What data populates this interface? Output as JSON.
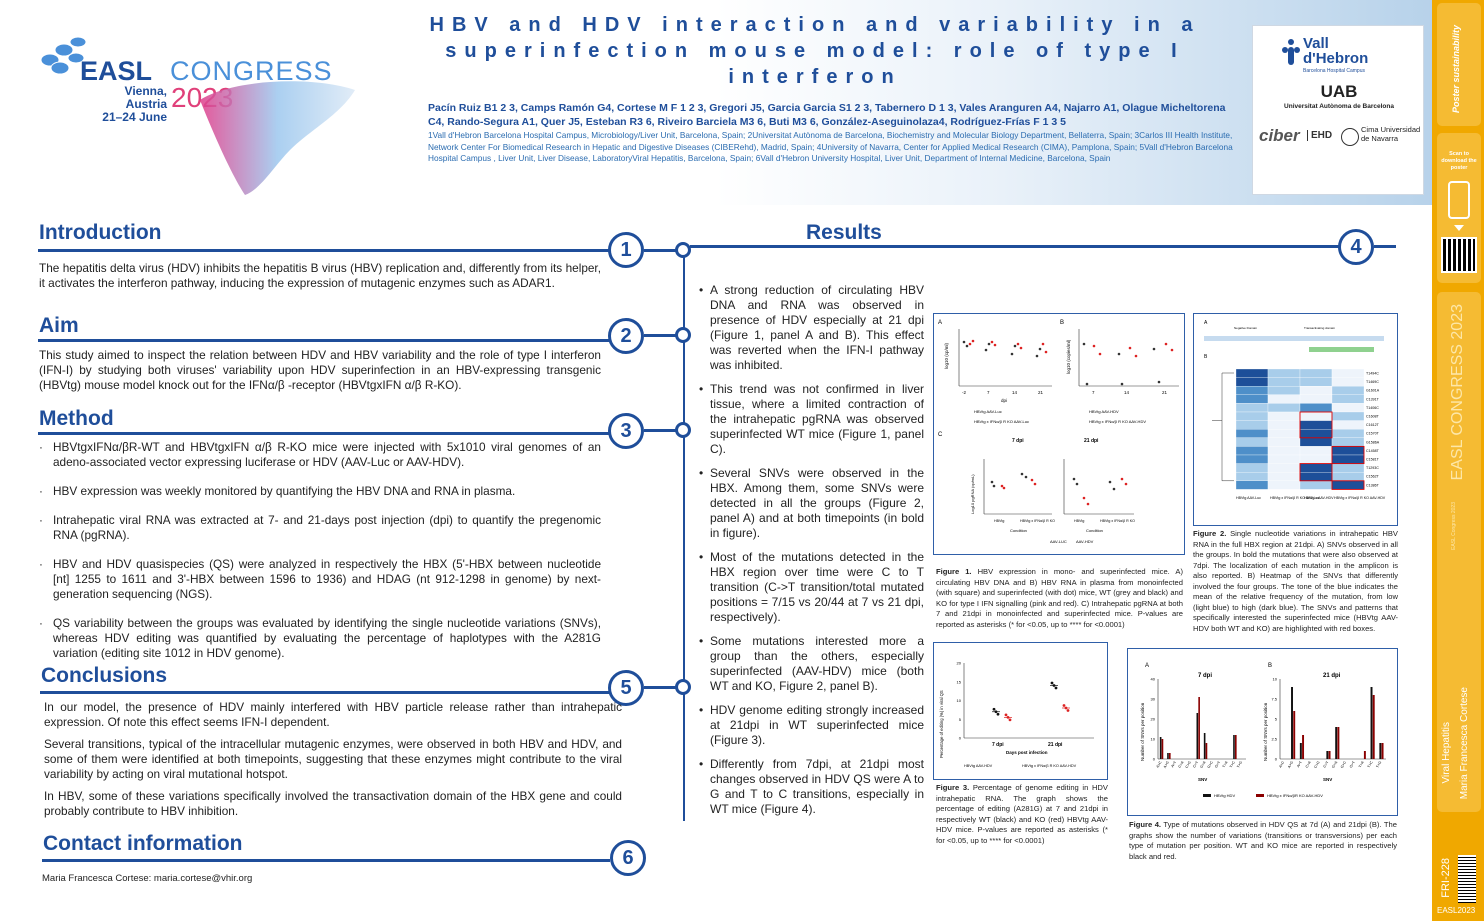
{
  "header": {
    "title": "HBV and HDV interaction and variability in a superinfection mouse model: role of type I interferon",
    "authors": "Pacín Ruiz B1 2 3, Camps Ramón G4, Cortese M F 1 2 3, Gregori J5, Garcia Garcia S1 2 3, Tabernero D 1 3, Vales Aranguren A4, Najarro A1, Olague Micheltorena C4, Rando-Segura A1, Quer J5, Esteban R3 6, Riveiro Barciela M3 6, Buti M3 6, González-Aseguinolaza4, Rodríguez-Frías F 1 3 5",
    "affiliations": "1Vall d'Hebron Barcelona Hospital Campus, Microbiology/Liver Unit, Barcelona, Spain; 2Universitat Autònoma de Barcelona, Biochemistry and Molecular Biology Department, Bellaterra, Spain; 3Carlos III Health Institute, Network Center For Biomedical Research in Hepatic and Digestive Diseases (CIBERehd), Madrid, Spain; 4University of Navarra, Center for Applied Medical Research (CIMA), Pamplona, Spain; 5Vall d'Hebron Barcelona Hospital Campus , Liver Unit, Liver Disease, LaboratoryViral Hepatitis, Barcelona, Spain; 6Vall d'Hebron University Hospital, Liver Unit, Department of Internal Medicine, Barcelona, Spain"
  },
  "logo": {
    "easl": "EASL",
    "congress": "CONGRESS",
    "city": "Vienna, Austria",
    "dates": "21–24 June",
    "year": "2023"
  },
  "partners": {
    "vh1": "Vall",
    "vh2": "d'Hebron",
    "vh3": "Barcelona Hospital Campus",
    "uab1": "UAB",
    "uab2": "Universitat Autònoma de Barcelona",
    "ciber": "ciber",
    "ehd": "EHD",
    "cima": "Cima Universidad de Navarra"
  },
  "sidebar": {
    "scan": "Scan to download the poster",
    "code": "FRI-228",
    "topic": "Viral Hepatitis",
    "author": "Maria Francesca Cortese",
    "footer": "EASL2023"
  },
  "sections": {
    "intro": {
      "title": "Introduction",
      "num": "1",
      "text": "The hepatitis delta virus (HDV) inhibits the hepatitis B virus (HBV) replication and, differently from its helper, it activates the interferon pathway, inducing the expression of mutagenic enzymes such as ADAR1."
    },
    "aim": {
      "title": "Aim",
      "num": "2",
      "text": "This study aimed to inspect the relation between HDV and HBV variability and the role of type I interferon (IFN-I) by studying both viruses' variability upon HDV superinfection in an HBV-expressing transgenic (HBVtg) mouse model knock out for the IFNα/β -receptor (HBVtgxIFN α/β R-KO)."
    },
    "method": {
      "title": "Method",
      "num": "3",
      "items": [
        "HBVtgxIFNα/βR-WT and HBVtgxIFN α/β R-KO mice were injected with 5x1010 viral genomes of an adeno-associated vector expressing luciferase or HDV (AAV-Luc or AAV-HDV).",
        "HBV expression was weekly monitored by quantifying the HBV DNA and RNA in plasma.",
        "Intrahepatic viral RNA was extracted at 7- and 21-days post injection (dpi) to quantify the pregenomic RNA (pgRNA).",
        "HBV and HDV quasispecies (QS) were analyzed in respectively the HBX (5'-HBX between nucleotide [nt] 1255 to 1611 and 3'-HBX between 1596 to 1936) and HDAG (nt 912-1298 in genome) by next-generation sequencing (NGS).",
        "QS variability between the groups was evaluated by identifying the single nucleotide variations (SNVs), whereas HDV editing was quantified by evaluating the percentage of haplotypes with the A281G variation (editing site 1012 in HDV genome)."
      ]
    },
    "concl": {
      "title": "Conclusions",
      "num": "5",
      "p1": "In our model, the presence of HDV mainly interfered with HBV particle release rather than intrahepatic expression. Of note this effect seems IFN-I dependent.",
      "p2": "Several transitions, typical of the intracellular mutagenic enzymes, were observed in both HBV and HDV, and some of them were identified at both timepoints, suggesting that these enzymes might contribute to the viral variability by acting on viral mutational hotspot.",
      "p3": "In HBV, some of these variations specifically involved the transactivation domain of the HBX gene and could probably contribute to HBV inhibition."
    },
    "contact": {
      "title": "Contact information",
      "num": "6",
      "text": "Maria Francesca Cortese: maria.cortese@vhir.org"
    },
    "results": {
      "title": "Results",
      "num": "4",
      "items": [
        "A strong reduction of circulating HBV DNA and RNA was observed in presence of HDV especially at 21 dpi (Figure 1, panel A and B). This effect was reverted when the IFN-I pathway was inhibited.",
        "This trend was not confirmed in liver tissue, where a limited contraction of the intrahepatic pgRNA was observed superinfected WT mice (Figure 1, panel C).",
        "Several SNVs were observed in the HBX. Among them, some SNVs were detected in all the groups (Figure 2, panel A) and at both timepoints (in bold in figure).",
        "Most of the mutations detected in the HBX region over time were C to T transition (C->T transition/total mutated positions = 7/15 vs 20/44 at 7 vs 21 dpi, respectively).",
        "Some mutations interested more a group than the others, especially superinfected (AAV-HDV) mice (both WT and KO, Figure 2, panel B).",
        "HDV genome editing strongly increased at 21dpi in WT superinfected mice (Figure 3).",
        "Differently from 7dpi, at 21dpi most changes observed in HDV QS were A to G and T to C transitions, especially in WT mice (Figure 4)."
      ]
    }
  },
  "figures": {
    "f1cap_b": "Figure 1.",
    "f1cap": "HBV expression in mono- and superinfected mice. A) circulating HBV DNA and B) HBV RNA in plasma from monoinfected (with square) and superinfected (with dot) mice, WT (grey and black) and KO for type I IFN signalling (pink and red). C) Intrahepatic pgRNA at both 7 and 21dpi in monoinfected and superinfected mice. P-values are reported as asterisks (* for <0.05, up to **** for <0.0001)",
    "f2cap_b": "Figure 2.",
    "f2cap": "Single nucleotide variations in intrahepatic HBV RNA in the full HBX region at 21dpi. A) SNVs observed in all the groups. In bold the mutations that were also observed at 7dpi. The localization of each mutation in the amplicon is also reported. B) Heatmap of the SNVs that differently involved the four groups. The tone of the blue indicates the mean of the relative frequency of the mutation, from low (light blue) to high (dark blue). The SNVs and patterns that specifically interested the superinfected mice (HBVtg AAV-HDV both WT and KO) are highlighted with red boxes.",
    "f3cap_b": "Figure 3.",
    "f3cap": "Percentage of genome editing in HDV intrahepatic RNA. The graph shows the percentage of editing (A281G) at 7 and 21dpi in respectively WT (black) and KO (red) HBVtg AAV-HDV mice. P-values are reported as asterisks (* for <0.05, up to **** for <0.0001)",
    "f4cap_b": "Figure 4.",
    "f4cap": "Type of mutations observed in HDV QS at 7d (A) and 21dpi (B). The graphs show the number of variations (transitions or transversions) per each type of mutation per position. WT and KO mice are reported in respectively black and red.",
    "f1": {
      "A": "A",
      "B": "B",
      "C": "C",
      "ylabA": "log10 (cp/ml)",
      "ylabB": "log10 (copies/ml)",
      "dpi": "dpi",
      "t7": "7 dpi",
      "t21": "21 dpi",
      "cond": "Condition",
      "ylabC": "Log10 pgRNA (cp/mL)",
      "xA": [
        "-2",
        "7",
        "14",
        "21"
      ],
      "xB": [
        "7",
        "14",
        "21"
      ],
      "xC": [
        "HBVtg",
        "HBVtg x IFNα/β R KO"
      ],
      "legA1": "HBVtg AAV-Luc",
      "legA2": "HBVtg x IFNα/β R KO AAV-Luc",
      "legB1": "HBVtg AAV-HDV",
      "legB2": "HBVtg x IFNα/β R KO AAV-HDV",
      "legC1": "AAV-LUC",
      "legC2": "AAV-HDV"
    },
    "f2": {
      "A": "A",
      "B": "B",
      "dom1": "Negative Domain",
      "dom2": "Transactivating domain",
      "cols": [
        "HBVtg AAV-Luc",
        "HBVtg x IFNα/β R KO AAV-Luc",
        "HBVtg x AAV-HDV",
        "HBVtg x IFNα/β R KO AAV-HDV"
      ],
      "rows": [
        "T1494C",
        "T1469C",
        "G1601A",
        "C1391T",
        "T1406C",
        "C1608T",
        "C1612T",
        "C1570T",
        "G1586A",
        "C1458T",
        "C1581T",
        "T1293C",
        "C1562T",
        "C1386T"
      ]
    },
    "f3": {
      "ylab": "Percentage of editing (%) in viral QS",
      "xlab": "Days post infection",
      "x": [
        "7 dpi",
        "21 dpi"
      ],
      "leg1": "HBVtg AAV-HDV",
      "leg2": "HBVtg x IFNα/β R KO AAV-HDV"
    },
    "f4": {
      "A": "A",
      "B": "B",
      "tA": "7 dpi",
      "tB": "21 dpi",
      "ylab": "Number of SNVs per position",
      "xlab": "SNV",
      "leg1": "HBVtg HDV",
      "leg2": "HBVtg x IFNα/βR KO AAV-HDV"
    }
  },
  "chart_data": [
    {
      "type": "bar",
      "title": "7 dpi",
      "xlabel": "SNV",
      "ylabel": "Number of SNVs per position",
      "ylim": [
        0,
        40
      ],
      "categories": [
        "A>C",
        "A>G",
        "A>T",
        "C>A",
        "C>G",
        "C>T",
        "G>A",
        "G>C",
        "G>T",
        "T>A",
        "T>C",
        "T>G"
      ],
      "series": [
        {
          "name": "HBVtg HDV",
          "values": [
            11,
            3,
            0,
            0,
            0,
            23,
            13,
            0,
            0,
            0,
            12,
            0
          ]
        },
        {
          "name": "HBVtg x IFNα/βR KO AAV-HDV",
          "values": [
            10,
            3,
            0,
            0,
            0,
            31,
            8,
            0,
            0,
            0,
            12,
            0
          ]
        }
      ]
    },
    {
      "type": "bar",
      "title": "21 dpi",
      "xlabel": "SNV",
      "ylabel": "Number of SNVs per position",
      "ylim": [
        0,
        10
      ],
      "categories": [
        "A>C",
        "A>G",
        "A>T",
        "C>A",
        "C>G",
        "C>T",
        "G>A",
        "G>C",
        "G>T",
        "T>A",
        "T>C",
        "T>G"
      ],
      "series": [
        {
          "name": "HBVtg HDV",
          "values": [
            0,
            9,
            2,
            0,
            0,
            1,
            4,
            0,
            0,
            0,
            9,
            2
          ]
        },
        {
          "name": "HBVtg x IFNα/βR KO AAV-HDV",
          "values": [
            0,
            6,
            3,
            0,
            0,
            1,
            4,
            0,
            0,
            1,
            8,
            2
          ]
        }
      ]
    },
    {
      "type": "scatter",
      "title": "",
      "xlabel": "Days post infection",
      "ylabel": "Percentage of editing (%) in viral QS",
      "ylim": [
        0,
        20
      ],
      "categories": [
        "7 dpi",
        "21 dpi"
      ],
      "series": [
        {
          "name": "HBVtg AAV-HDV",
          "values": [
            7,
            14
          ]
        },
        {
          "name": "HBVtg x IFNα/β R KO AAV-HDV",
          "values": [
            5.5,
            8
          ]
        }
      ]
    }
  ]
}
